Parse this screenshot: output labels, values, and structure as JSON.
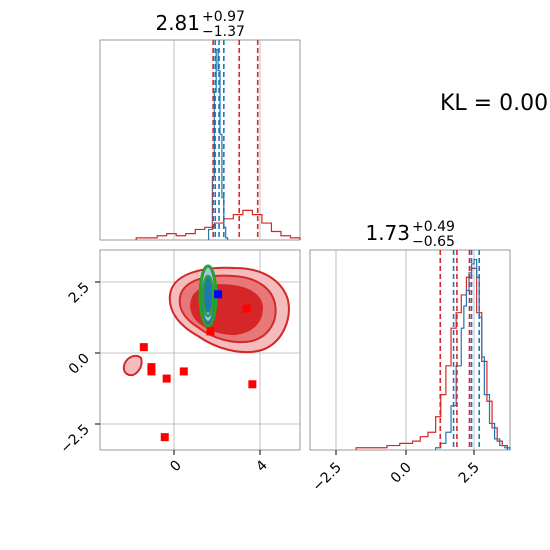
{
  "annotation": {
    "kl_text": "KL = 0.00"
  },
  "colors": {
    "red": "#d62728",
    "blue": "#1f77b4",
    "green": "#2ca02c",
    "marker_red": "#ff0000",
    "marker_blue": "#0000ff",
    "grid": "#b0b0b0",
    "frame": "#808080"
  },
  "chart_data": [
    {
      "type": "histogram",
      "panel": "top-left",
      "title_value": "2.81",
      "title_plus": "+0.97",
      "title_minus": "−1.37",
      "xlim": [
        -4.5,
        6
      ],
      "series": [
        {
          "name": "",
          "color": "#d62728",
          "bins_x": [
            -2.6,
            -2.0,
            -1.5,
            -1.0,
            -0.5,
            0.0,
            0.5,
            1.0,
            1.5,
            2.0,
            2.5,
            3.0,
            3.5,
            4.0,
            4.5,
            5.0,
            5.5
          ],
          "counts": [
            0.01,
            0.01,
            0.02,
            0.03,
            0.02,
            0.03,
            0.05,
            0.06,
            0.08,
            0.1,
            0.12,
            0.14,
            0.12,
            0.08,
            0.04,
            0.02,
            0.01
          ]
        },
        {
          "name": "",
          "color": "#1f77b4",
          "bins_x": [
            1.2,
            1.4,
            1.5,
            1.6,
            1.7,
            1.8,
            1.9,
            2.0,
            2.1
          ],
          "counts": [
            0.05,
            0.3,
            0.7,
            0.9,
            0.8,
            0.5,
            0.2,
            0.06,
            0.01
          ]
        }
      ],
      "quantile_lines": [
        {
          "color": "#d62728",
          "values": [
            1.44,
            2.81,
            3.78
          ]
        },
        {
          "color": "#1f77b4",
          "values": [
            1.55,
            1.75,
            2.0
          ]
        }
      ]
    },
    {
      "type": "histogram",
      "panel": "bottom-right",
      "title_value": "1.73",
      "title_plus": "+0.49",
      "title_minus": "−0.65",
      "xlim": [
        -4,
        3.8
      ],
      "xticks": [
        "−2.5",
        "0.0",
        "2.5"
      ],
      "series": [
        {
          "name": "",
          "color": "#d62728",
          "bins_x": [
            -2.2,
            -1.5,
            -1.0,
            -0.5,
            0.0,
            0.3,
            0.6,
            0.9,
            1.1,
            1.3,
            1.5,
            1.7,
            1.9,
            2.1,
            2.3,
            2.5,
            2.7,
            2.9,
            3.1,
            3.3,
            3.5
          ],
          "counts": [
            0.01,
            0.01,
            0.02,
            0.03,
            0.04,
            0.06,
            0.08,
            0.15,
            0.25,
            0.38,
            0.55,
            0.62,
            0.7,
            0.78,
            0.82,
            0.62,
            0.4,
            0.22,
            0.1,
            0.04,
            0.02
          ]
        },
        {
          "name": "",
          "color": "#1f77b4",
          "bins_x": [
            0.9,
            1.1,
            1.3,
            1.5,
            1.7,
            1.9,
            2.0,
            2.1,
            2.2,
            2.3,
            2.4,
            2.5,
            2.6,
            2.7,
            2.8,
            3.0,
            3.2,
            3.4,
            3.6
          ],
          "counts": [
            0.01,
            0.03,
            0.08,
            0.2,
            0.38,
            0.55,
            0.65,
            0.72,
            0.8,
            0.84,
            0.86,
            0.78,
            0.6,
            0.42,
            0.25,
            0.12,
            0.05,
            0.02,
            0.01
          ]
        }
      ],
      "quantile_lines": [
        {
          "color": "#d62728",
          "values": [
            1.08,
            1.73,
            2.22
          ]
        },
        {
          "color": "#1f77b4",
          "values": [
            1.6,
            2.3,
            2.6
          ]
        }
      ]
    },
    {
      "type": "scatter",
      "panel": "bottom-left",
      "xlim": [
        -4.5,
        6
      ],
      "ylim": [
        -3.4,
        3.6
      ],
      "xticks": [
        "0",
        "4"
      ],
      "yticks": [
        "2.5",
        "0.0",
        "−2.5"
      ],
      "ytick_values": [
        2.5,
        0.0,
        -2.5
      ],
      "xtick_values": [
        0,
        4
      ],
      "red_squares": [
        [
          -2.2,
          0.2
        ],
        [
          -1.8,
          -0.5
        ],
        [
          -1.8,
          -0.65
        ],
        [
          -1.0,
          -0.9
        ],
        [
          -0.1,
          -0.65
        ],
        [
          1.3,
          0.75
        ],
        [
          3.2,
          1.55
        ],
        [
          3.5,
          -1.1
        ],
        [
          -1.1,
          -2.95
        ]
      ],
      "blue_square": [
        1.7,
        2.05
      ],
      "red_contour_levels": 3,
      "blue_ellipse_center": [
        1.7,
        2.0
      ],
      "green_ellipse_center": [
        1.7,
        2.0
      ]
    }
  ]
}
